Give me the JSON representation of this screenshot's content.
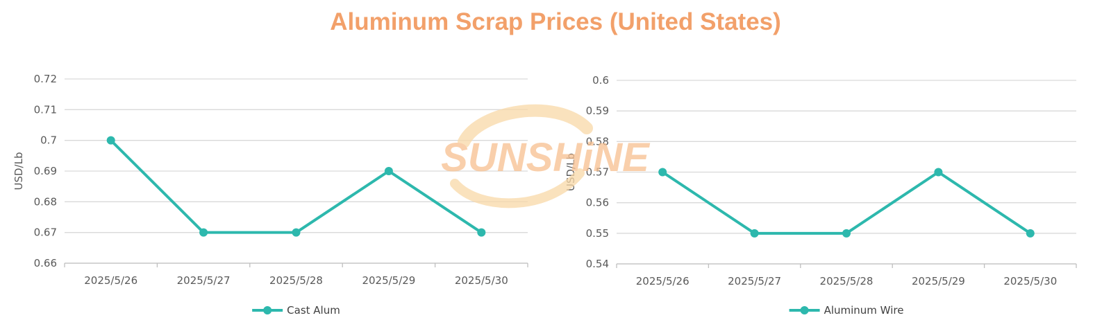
{
  "title": "Aluminum Scrap Prices (United States)",
  "watermark": {
    "text": "SUNSHiNE",
    "color": "#f7c090"
  },
  "colors": {
    "line": "#2db8ad",
    "grid": "#d9d9d9",
    "title": "#f2a06a"
  },
  "chart_data": [
    {
      "type": "line",
      "title": "",
      "xlabel": "",
      "ylabel": "USD/Lb",
      "categories": [
        "2025/5/26",
        "2025/5/27",
        "2025/5/28",
        "2025/5/29",
        "2025/5/30"
      ],
      "series": [
        {
          "name": "Cast Alum",
          "values": [
            0.7,
            0.67,
            0.67,
            0.69,
            0.67
          ]
        }
      ],
      "ylim": [
        0.66,
        0.72
      ],
      "yticks": [
        "0.66",
        "0.67",
        "0.68",
        "0.69",
        "0.7",
        "0.71",
        "0.72"
      ],
      "grid": true,
      "legend": "bottom-center"
    },
    {
      "type": "line",
      "title": "",
      "xlabel": "",
      "ylabel": "USD/Lb",
      "categories": [
        "2025/5/26",
        "2025/5/27",
        "2025/5/28",
        "2025/5/29",
        "2025/5/30"
      ],
      "series": [
        {
          "name": "Aluminum Wire",
          "values": [
            0.57,
            0.55,
            0.55,
            0.57,
            0.55
          ]
        }
      ],
      "ylim": [
        0.54,
        0.6
      ],
      "yticks": [
        "0.54",
        "0.55",
        "0.56",
        "0.57",
        "0.58",
        "0.59",
        "0.6"
      ],
      "grid": true,
      "legend": "bottom-center"
    }
  ]
}
